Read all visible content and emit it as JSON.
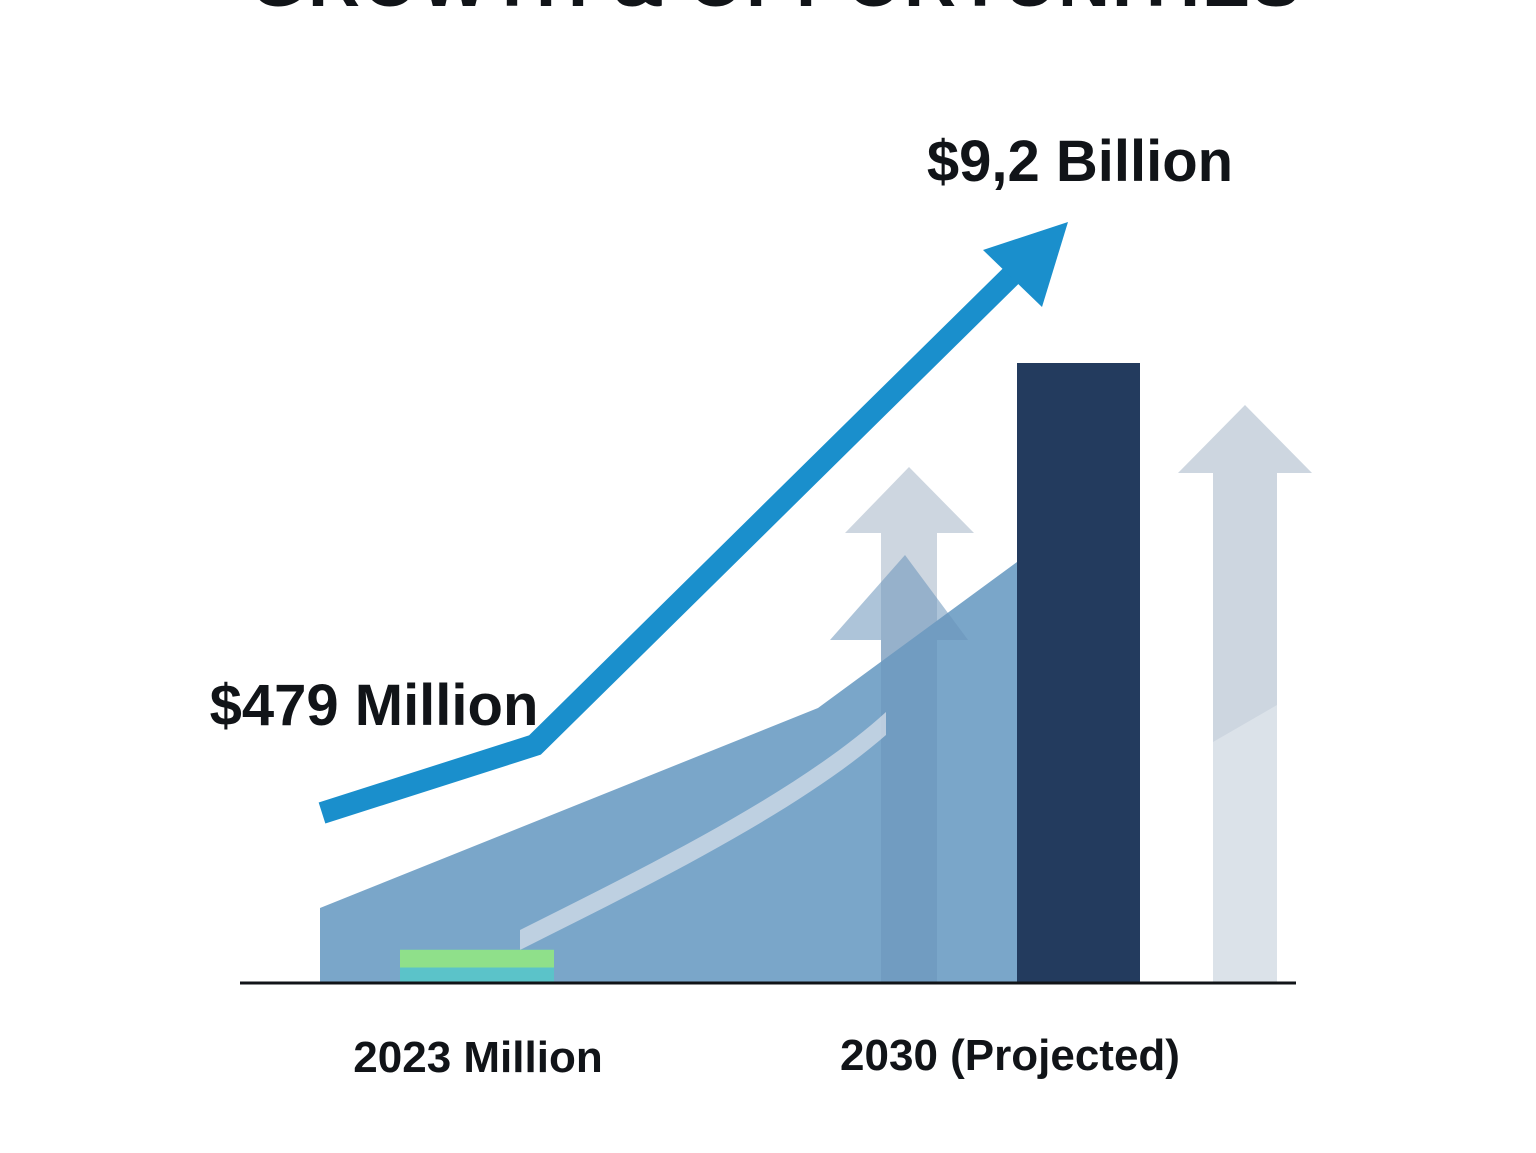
{
  "chart_data": {
    "type": "bar",
    "title": "GROWTH & OPPORTUNITIES",
    "categories": [
      "2023 Million",
      "2030 (Projected)"
    ],
    "series": [
      {
        "values": [
          0.479,
          9.2
        ],
        "value_labels": [
          "$479 Million",
          "$9,2 Billion"
        ]
      }
    ],
    "xlabel": "",
    "ylabel": "",
    "ylim": [
      0,
      10
    ],
    "grid": false,
    "legend": "none",
    "colors": {
      "trend_arrow": "#1a8fcc",
      "area": "#7aa6c9",
      "bar_2030": "#233b5e",
      "bar_2023": "#5bc3c9",
      "bar_2023_top": "#8fe08a",
      "ghost_arrow": "#c4cfdb",
      "mid_arrow": "#8ba7c4",
      "axis": "#111418",
      "text": "#111418"
    }
  }
}
